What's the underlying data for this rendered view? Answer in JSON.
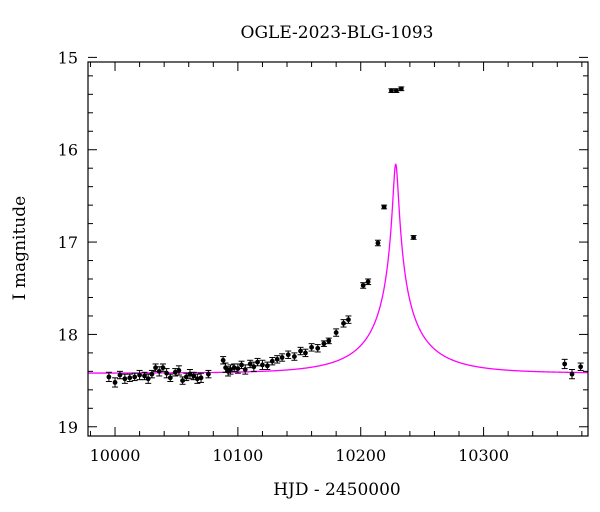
{
  "chart_data": {
    "type": "scatter",
    "title": "OGLE-2023-BLG-1093",
    "xlabel": "HJD - 2450000",
    "ylabel": "I magnitude",
    "xlim": [
      9978,
      10385
    ],
    "ylim": [
      15.05,
      19.1
    ],
    "y_inverted": true,
    "grid": false,
    "legend": "none",
    "x_ticks": [
      10000,
      10100,
      10200,
      10300
    ],
    "x_tick_labels": [
      "10000",
      "10100",
      "10200",
      "10300"
    ],
    "y_ticks": [
      15,
      16,
      17,
      18,
      19
    ],
    "y_tick_labels": [
      "15",
      "16",
      "17",
      "18",
      "19"
    ],
    "colors": {
      "model": "#ff00ff",
      "points": "#000000"
    },
    "model": {
      "t0": 10228.5,
      "u0": 0.037,
      "tE": 57,
      "baseline": 18.42,
      "fs": 0.27
    },
    "series": [
      {
        "style": "points-with-errorbars",
        "x": [
          9995,
          10000,
          10004,
          10008,
          10012,
          10016,
          10020,
          10024,
          10027,
          10030,
          10033,
          10036,
          10039,
          10042,
          10045,
          10049,
          10052,
          10055,
          10058,
          10061,
          10064,
          10067,
          10070,
          10076,
          10088,
          10090,
          10092,
          10094,
          10097,
          10100,
          10103,
          10106,
          10110,
          10113,
          10116,
          10120,
          10124,
          10128,
          10132,
          10136,
          10141,
          10146,
          10151,
          10155,
          10160,
          10165,
          10170,
          10174,
          10180,
          10186,
          10190,
          10202,
          10206,
          10214,
          10219,
          10225,
          10229,
          10233,
          10243,
          10366,
          10372,
          10379
        ],
        "y": [
          18.46,
          18.52,
          18.44,
          18.48,
          18.47,
          18.46,
          18.44,
          18.45,
          18.48,
          18.43,
          18.36,
          18.4,
          18.36,
          18.42,
          18.47,
          18.41,
          18.39,
          18.5,
          18.46,
          18.43,
          18.45,
          18.48,
          18.47,
          18.43,
          18.28,
          18.36,
          18.4,
          18.38,
          18.36,
          18.37,
          18.33,
          18.38,
          18.32,
          18.35,
          18.3,
          18.33,
          18.34,
          18.29,
          18.27,
          18.25,
          18.22,
          18.24,
          18.18,
          18.2,
          18.14,
          18.15,
          18.1,
          18.07,
          17.98,
          17.88,
          17.84,
          17.47,
          17.43,
          17.01,
          16.62,
          15.36,
          15.36,
          15.34,
          16.95,
          18.32,
          18.43,
          18.35
        ],
        "yerr": [
          0.05,
          0.05,
          0.04,
          0.05,
          0.04,
          0.04,
          0.05,
          0.04,
          0.05,
          0.04,
          0.04,
          0.05,
          0.04,
          0.05,
          0.04,
          0.04,
          0.05,
          0.04,
          0.04,
          0.05,
          0.04,
          0.05,
          0.05,
          0.04,
          0.04,
          0.05,
          0.05,
          0.05,
          0.04,
          0.05,
          0.04,
          0.05,
          0.04,
          0.05,
          0.04,
          0.05,
          0.04,
          0.04,
          0.04,
          0.04,
          0.04,
          0.04,
          0.04,
          0.04,
          0.04,
          0.04,
          0.03,
          0.03,
          0.04,
          0.04,
          0.04,
          0.03,
          0.03,
          0.03,
          0.02,
          0.02,
          0.02,
          0.02,
          0.02,
          0.05,
          0.05,
          0.04
        ]
      }
    ]
  }
}
